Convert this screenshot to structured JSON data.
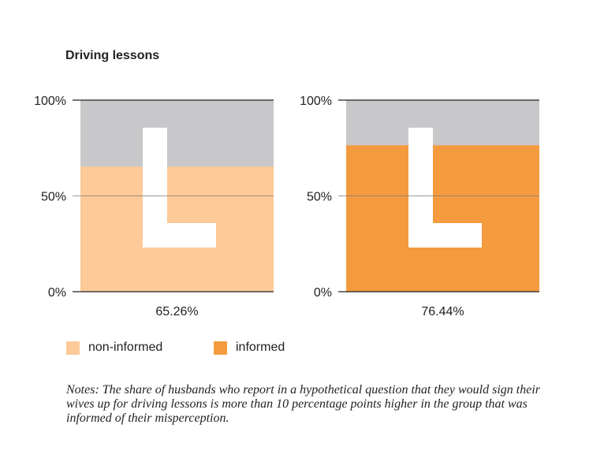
{
  "chart_data": [
    {
      "type": "bar",
      "title": "Driving lessons",
      "category": "non-informed",
      "value": 65.26,
      "value_label": "65.26%",
      "ylim": [
        0,
        100
      ],
      "yticks": [
        "0%",
        "50%",
        "100%"
      ],
      "fill_color": "#fdca98",
      "background_color": "#c8c8ca"
    },
    {
      "type": "bar",
      "title": "Driving lessons",
      "category": "informed",
      "value": 76.44,
      "value_label": "76.44%",
      "ylim": [
        0,
        100
      ],
      "yticks": [
        "0%",
        "50%",
        "100%"
      ],
      "fill_color": "#f59b3f",
      "background_color": "#c8c8ca"
    }
  ],
  "title": "Driving lessons",
  "legend": [
    {
      "label": "non-informed",
      "color": "#fdca98"
    },
    {
      "label": "informed",
      "color": "#f59b3f"
    }
  ],
  "notes": "Notes: The share of husbands who report in a hypothetical question that they would sign their wives up for driving lessons is more than 10 percentage points higher in the group that was informed of their misperception."
}
